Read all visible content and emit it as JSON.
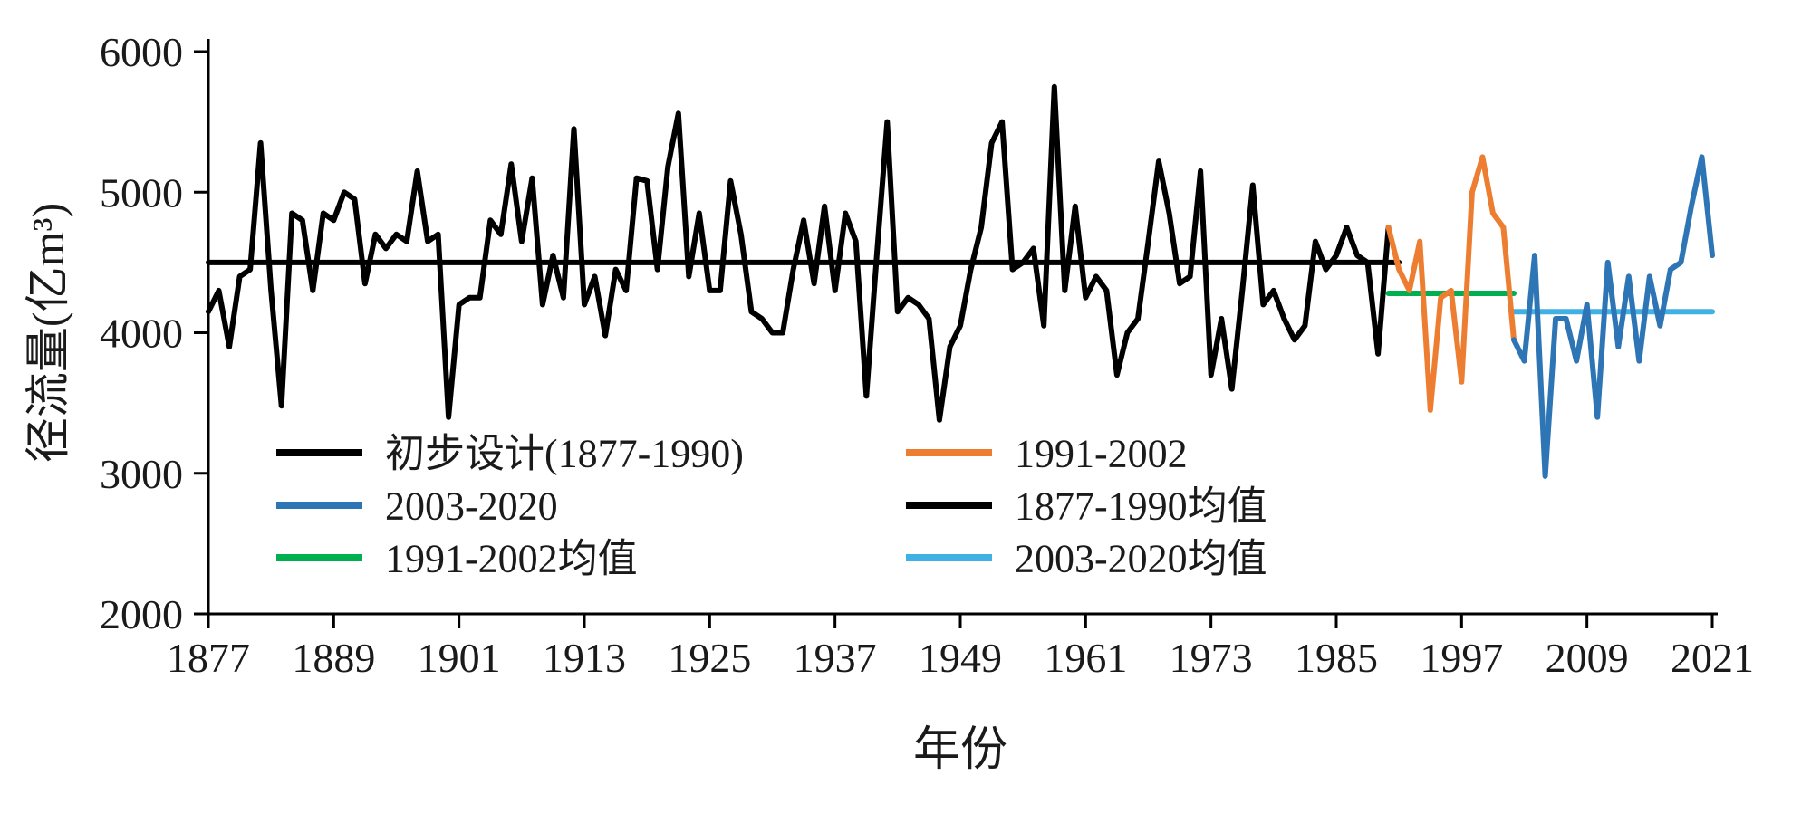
{
  "chart_data": {
    "type": "line",
    "title": "",
    "xlabel": "年份",
    "ylabel": "径流量(亿m³)",
    "ylim": [
      2000,
      6000
    ],
    "ytick_step": 1000,
    "xlim": [
      1877,
      2021
    ],
    "xticks": [
      1877,
      1889,
      1901,
      1913,
      1925,
      1937,
      1949,
      1961,
      1973,
      1985,
      1997,
      2009,
      2021
    ],
    "grid": false,
    "legend_position": "inside-bottom-left",
    "series": [
      {
        "name": "初步设计(1877-1990)",
        "color": "#000000",
        "start_year": 1877,
        "values": [
          4150,
          4300,
          3900,
          4400,
          4450,
          5350,
          4300,
          3480,
          4850,
          4800,
          4300,
          4850,
          4800,
          5000,
          4950,
          4350,
          4700,
          4600,
          4700,
          4650,
          5150,
          4650,
          4700,
          3400,
          4200,
          4250,
          4250,
          4800,
          4700,
          5200,
          4650,
          5100,
          4200,
          4550,
          4250,
          5450,
          4200,
          4400,
          3980,
          4450,
          4300,
          5100,
          5080,
          4450,
          5180,
          5560,
          4400,
          4850,
          4300,
          4300,
          5080,
          4700,
          4150,
          4100,
          4000,
          4000,
          4450,
          4800,
          4350,
          4900,
          4300,
          4850,
          4650,
          3550,
          4550,
          5500,
          4150,
          4250,
          4200,
          4100,
          3380,
          3900,
          4050,
          4450,
          4750,
          5350,
          5500,
          4450,
          4500,
          4600,
          4050,
          5750,
          4300,
          4900,
          4250,
          4400,
          4300,
          3700,
          4000,
          4100,
          4650,
          5220,
          4850,
          4350,
          4400,
          5150,
          3700,
          4100,
          3600,
          4300,
          5050,
          4200,
          4300,
          4100,
          3950,
          4050,
          4650,
          4450,
          4550,
          4750,
          4550,
          4500,
          3850,
          4750
        ]
      },
      {
        "name": "1991-2002",
        "color": "#ED7D31",
        "start_year": 1990,
        "values": [
          4750,
          4450,
          4300,
          4650,
          3450,
          4250,
          4300,
          3650,
          5000,
          5250,
          4850,
          4750,
          3950
        ]
      },
      {
        "name": "2003-2020",
        "color": "#2E75B6",
        "start_year": 2002,
        "values": [
          3950,
          3800,
          4550,
          2980,
          4100,
          4100,
          3800,
          4200,
          3400,
          4500,
          3900,
          4400,
          3800,
          4400,
          4050,
          4450,
          4500,
          4900,
          5250,
          4550
        ]
      }
    ],
    "mean_lines": [
      {
        "name": "1877-1990均值",
        "color": "#000000",
        "value": 4500,
        "from": 1877,
        "to": 1991
      },
      {
        "name": "1991-2002均值",
        "color": "#00B050",
        "value": 4280,
        "from": 1990,
        "to": 2002
      },
      {
        "name": "2003-2020均值",
        "color": "#41B0E4",
        "value": 4150,
        "from": 2002,
        "to": 2021
      }
    ],
    "legend": [
      {
        "label": "初步设计(1877-1990)",
        "color": "#000000"
      },
      {
        "label": "1991-2002",
        "color": "#ED7D31"
      },
      {
        "label": "2003-2020",
        "color": "#2E75B6"
      },
      {
        "label": "1877-1990均值",
        "color": "#000000"
      },
      {
        "label": "1991-2002均值",
        "color": "#00B050"
      },
      {
        "label": "2003-2020均值",
        "color": "#41B0E4"
      }
    ]
  }
}
